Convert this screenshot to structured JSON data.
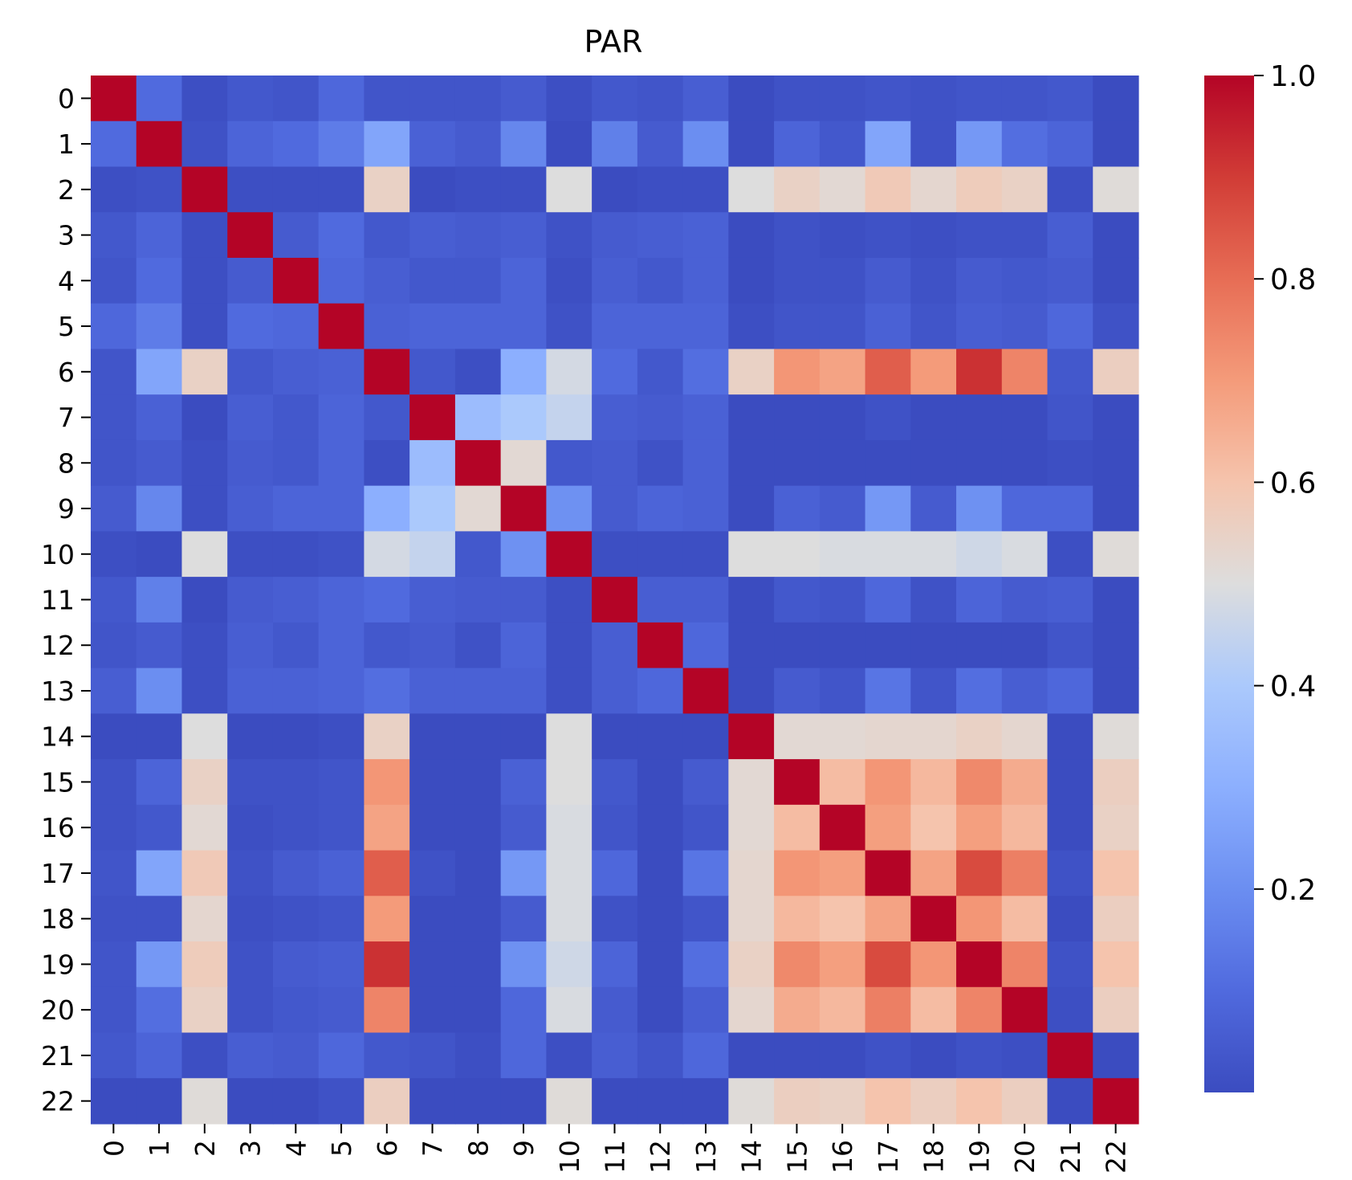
{
  "chart_data": {
    "type": "heatmap",
    "title": "PAR",
    "xlabel": "",
    "ylabel": "",
    "x_categories": [
      "0",
      "1",
      "2",
      "3",
      "4",
      "5",
      "6",
      "7",
      "8",
      "9",
      "10",
      "11",
      "12",
      "13",
      "14",
      "15",
      "16",
      "17",
      "18",
      "19",
      "20",
      "21",
      "22"
    ],
    "y_categories": [
      "0",
      "1",
      "2",
      "3",
      "4",
      "5",
      "6",
      "7",
      "8",
      "9",
      "10",
      "11",
      "12",
      "13",
      "14",
      "15",
      "16",
      "17",
      "18",
      "19",
      "20",
      "21",
      "22"
    ],
    "colormap": "coolwarm",
    "color_range": [
      0.0,
      1.0
    ],
    "colorbar_ticks": [
      0.2,
      0.4,
      0.6,
      0.8,
      1.0
    ],
    "colorbar_tick_labels": [
      "0.2",
      "0.4",
      "0.6",
      "0.8",
      "1.0"
    ],
    "values": [
      [
        1.0,
        0.1,
        0.01,
        0.04,
        0.03,
        0.09,
        0.03,
        0.03,
        0.03,
        0.05,
        0.01,
        0.04,
        0.03,
        0.06,
        0.0,
        0.02,
        0.02,
        0.03,
        0.02,
        0.03,
        0.03,
        0.04,
        0.0
      ],
      [
        0.1,
        1.0,
        0.02,
        0.08,
        0.1,
        0.15,
        0.27,
        0.07,
        0.05,
        0.18,
        0.0,
        0.16,
        0.05,
        0.2,
        0.0,
        0.08,
        0.04,
        0.27,
        0.02,
        0.23,
        0.11,
        0.08,
        0.0
      ],
      [
        0.01,
        0.02,
        1.0,
        0.01,
        0.01,
        0.01,
        0.55,
        0.0,
        0.01,
        0.01,
        0.5,
        0.0,
        0.01,
        0.01,
        0.5,
        0.55,
        0.52,
        0.58,
        0.53,
        0.57,
        0.55,
        0.01,
        0.51
      ],
      [
        0.04,
        0.08,
        0.01,
        1.0,
        0.05,
        0.1,
        0.04,
        0.06,
        0.05,
        0.06,
        0.02,
        0.05,
        0.06,
        0.07,
        0.0,
        0.02,
        0.01,
        0.02,
        0.01,
        0.02,
        0.02,
        0.06,
        0.0
      ],
      [
        0.03,
        0.1,
        0.01,
        0.05,
        1.0,
        0.09,
        0.06,
        0.04,
        0.04,
        0.08,
        0.01,
        0.06,
        0.04,
        0.07,
        0.0,
        0.02,
        0.02,
        0.05,
        0.02,
        0.05,
        0.04,
        0.05,
        0.0
      ],
      [
        0.09,
        0.15,
        0.01,
        0.1,
        0.09,
        1.0,
        0.07,
        0.08,
        0.08,
        0.08,
        0.02,
        0.08,
        0.08,
        0.08,
        0.01,
        0.03,
        0.03,
        0.07,
        0.03,
        0.06,
        0.05,
        0.09,
        0.02
      ],
      [
        0.03,
        0.27,
        0.55,
        0.04,
        0.06,
        0.07,
        1.0,
        0.04,
        0.01,
        0.3,
        0.48,
        0.1,
        0.04,
        0.11,
        0.55,
        0.71,
        0.68,
        0.83,
        0.7,
        0.92,
        0.75,
        0.04,
        0.56
      ],
      [
        0.03,
        0.07,
        0.0,
        0.06,
        0.04,
        0.08,
        0.04,
        1.0,
        0.35,
        0.4,
        0.45,
        0.06,
        0.05,
        0.07,
        0.0,
        0.0,
        0.0,
        0.02,
        0.0,
        0.0,
        0.0,
        0.03,
        0.0
      ],
      [
        0.03,
        0.05,
        0.01,
        0.05,
        0.04,
        0.08,
        0.01,
        0.35,
        1.0,
        0.52,
        0.04,
        0.05,
        0.02,
        0.07,
        0.0,
        0.0,
        0.0,
        0.0,
        0.0,
        0.0,
        0.0,
        0.01,
        0.0
      ],
      [
        0.05,
        0.18,
        0.01,
        0.06,
        0.08,
        0.08,
        0.3,
        0.4,
        0.52,
        1.0,
        0.21,
        0.05,
        0.08,
        0.07,
        0.0,
        0.07,
        0.05,
        0.23,
        0.05,
        0.21,
        0.09,
        0.09,
        0.0
      ],
      [
        0.01,
        0.0,
        0.5,
        0.01,
        0.01,
        0.02,
        0.48,
        0.45,
        0.04,
        0.21,
        1.0,
        0.01,
        0.01,
        0.01,
        0.5,
        0.5,
        0.49,
        0.49,
        0.49,
        0.47,
        0.49,
        0.01,
        0.51
      ],
      [
        0.04,
        0.16,
        0.0,
        0.05,
        0.06,
        0.08,
        0.1,
        0.06,
        0.05,
        0.05,
        0.01,
        1.0,
        0.06,
        0.06,
        0.0,
        0.04,
        0.03,
        0.09,
        0.02,
        0.08,
        0.05,
        0.06,
        0.0
      ],
      [
        0.03,
        0.05,
        0.01,
        0.06,
        0.04,
        0.08,
        0.04,
        0.05,
        0.02,
        0.08,
        0.01,
        0.06,
        1.0,
        0.09,
        0.0,
        0.0,
        0.0,
        0.0,
        0.0,
        0.0,
        0.0,
        0.03,
        0.0
      ],
      [
        0.06,
        0.2,
        0.01,
        0.07,
        0.07,
        0.08,
        0.11,
        0.07,
        0.07,
        0.07,
        0.01,
        0.06,
        0.09,
        1.0,
        0.0,
        0.05,
        0.03,
        0.13,
        0.03,
        0.11,
        0.06,
        0.09,
        0.0
      ],
      [
        0.0,
        0.0,
        0.5,
        0.0,
        0.0,
        0.01,
        0.55,
        0.0,
        0.0,
        0.0,
        0.5,
        0.0,
        0.0,
        0.0,
        1.0,
        0.52,
        0.52,
        0.53,
        0.53,
        0.55,
        0.53,
        0.0,
        0.51
      ],
      [
        0.02,
        0.08,
        0.55,
        0.02,
        0.02,
        0.03,
        0.71,
        0.0,
        0.0,
        0.07,
        0.5,
        0.04,
        0.0,
        0.05,
        0.52,
        1.0,
        0.62,
        0.71,
        0.63,
        0.74,
        0.66,
        0.0,
        0.56
      ],
      [
        0.02,
        0.04,
        0.52,
        0.01,
        0.02,
        0.03,
        0.68,
        0.0,
        0.0,
        0.05,
        0.49,
        0.03,
        0.0,
        0.03,
        0.52,
        0.62,
        1.0,
        0.69,
        0.6,
        0.69,
        0.63,
        0.0,
        0.55
      ],
      [
        0.03,
        0.27,
        0.58,
        0.02,
        0.05,
        0.07,
        0.83,
        0.02,
        0.0,
        0.23,
        0.49,
        0.09,
        0.0,
        0.13,
        0.53,
        0.71,
        0.69,
        1.0,
        0.68,
        0.87,
        0.76,
        0.02,
        0.6
      ],
      [
        0.02,
        0.02,
        0.53,
        0.01,
        0.02,
        0.03,
        0.7,
        0.0,
        0.0,
        0.05,
        0.49,
        0.02,
        0.0,
        0.03,
        0.53,
        0.63,
        0.6,
        0.68,
        1.0,
        0.71,
        0.62,
        0.0,
        0.56
      ],
      [
        0.03,
        0.23,
        0.57,
        0.02,
        0.05,
        0.06,
        0.92,
        0.0,
        0.0,
        0.21,
        0.47,
        0.08,
        0.0,
        0.11,
        0.55,
        0.74,
        0.69,
        0.87,
        0.71,
        1.0,
        0.75,
        0.02,
        0.6
      ],
      [
        0.03,
        0.11,
        0.55,
        0.02,
        0.04,
        0.05,
        0.75,
        0.0,
        0.0,
        0.09,
        0.49,
        0.05,
        0.0,
        0.06,
        0.53,
        0.66,
        0.63,
        0.76,
        0.62,
        0.75,
        1.0,
        0.01,
        0.56
      ],
      [
        0.04,
        0.08,
        0.01,
        0.06,
        0.05,
        0.09,
        0.04,
        0.03,
        0.01,
        0.09,
        0.01,
        0.06,
        0.03,
        0.09,
        0.0,
        0.0,
        0.0,
        0.02,
        0.0,
        0.02,
        0.01,
        1.0,
        0.0
      ],
      [
        0.0,
        0.0,
        0.51,
        0.0,
        0.0,
        0.02,
        0.56,
        0.0,
        0.0,
        0.0,
        0.51,
        0.0,
        0.0,
        0.0,
        0.51,
        0.56,
        0.55,
        0.6,
        0.56,
        0.6,
        0.56,
        0.0,
        1.0
      ]
    ]
  }
}
